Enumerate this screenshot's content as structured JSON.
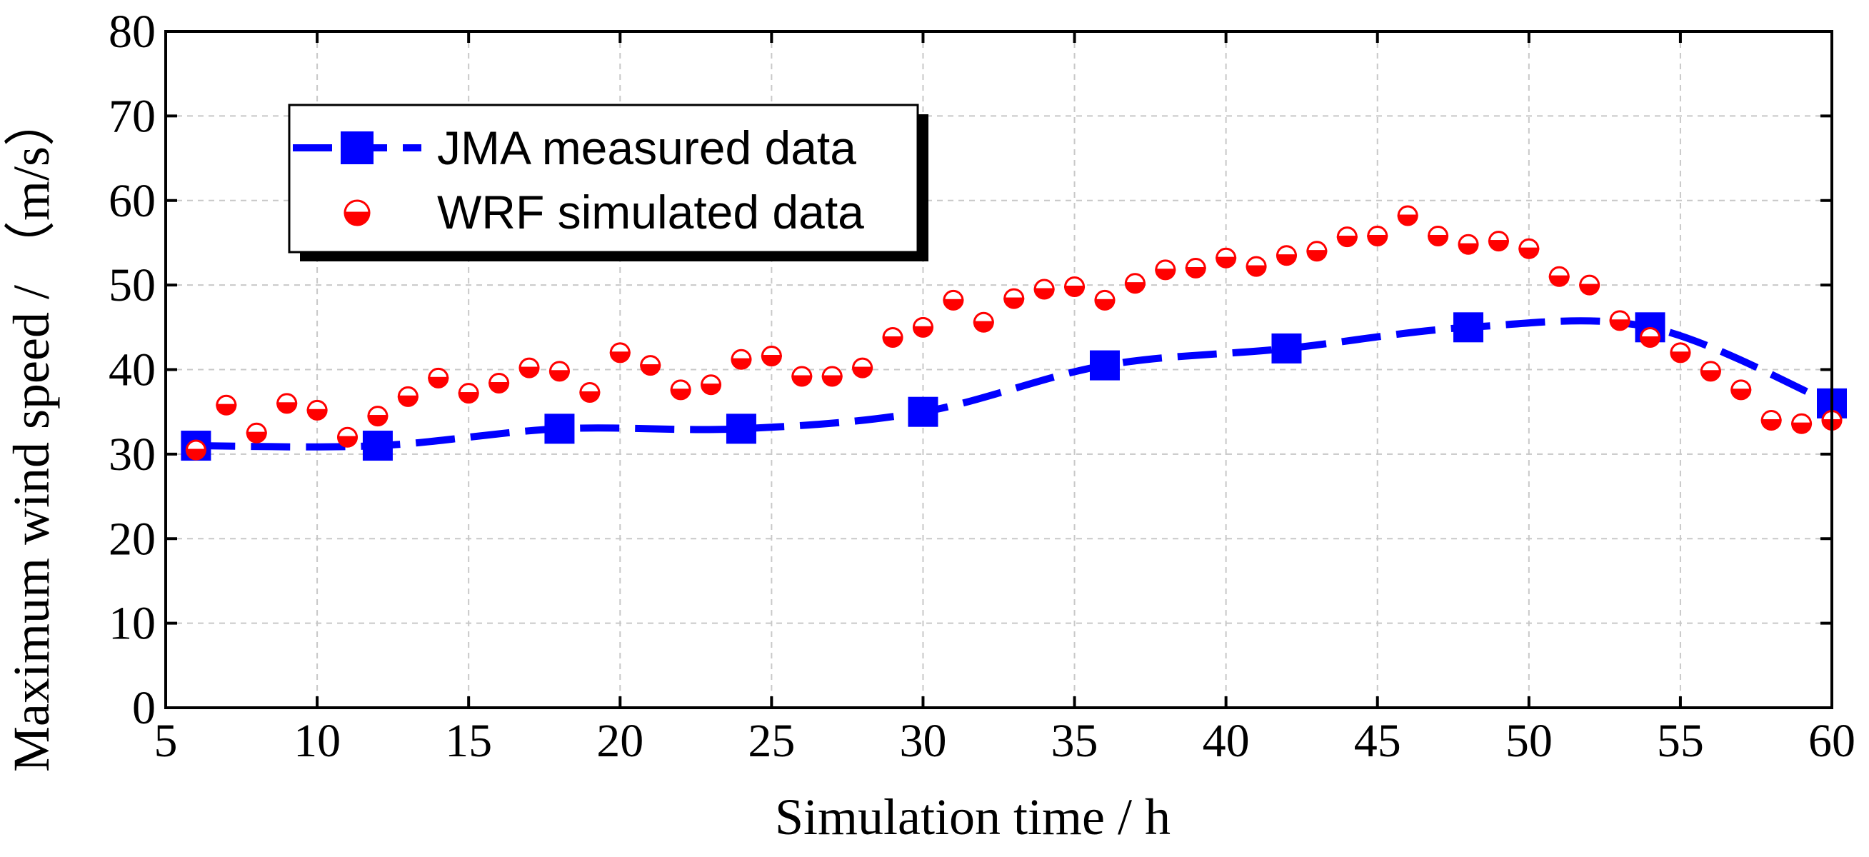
{
  "chart_data": {
    "type": "line",
    "xlabel": "Simulation time / h",
    "ylabel": "Maximum wind speed / （m/s）",
    "xlim": [
      5,
      60
    ],
    "ylim": [
      0,
      80
    ],
    "xticks": [
      5,
      10,
      15,
      20,
      25,
      30,
      35,
      40,
      45,
      50,
      55,
      60
    ],
    "yticks": [
      0,
      10,
      20,
      30,
      40,
      50,
      60,
      70,
      80
    ],
    "grid": true,
    "legend_position": "top-left",
    "series": [
      {
        "name": "JMA measured data",
        "style": "dashed-line-square-markers",
        "color": "#0000ff",
        "x": [
          6,
          12,
          18,
          24,
          30,
          36,
          42,
          48,
          54,
          60
        ],
        "y": [
          31,
          31,
          33,
          33,
          35,
          40.5,
          42.5,
          45,
          45,
          36
        ]
      },
      {
        "name": "WRF simulated data",
        "style": "half-filled-circle-markers",
        "color": "#ff0000",
        "x": [
          6,
          7,
          8,
          9,
          10,
          11,
          12,
          13,
          14,
          15,
          16,
          17,
          18,
          19,
          20,
          21,
          22,
          23,
          24,
          25,
          26,
          27,
          28,
          29,
          30,
          31,
          32,
          33,
          34,
          35,
          36,
          37,
          38,
          39,
          40,
          41,
          42,
          43,
          44,
          45,
          46,
          47,
          48,
          49,
          50,
          51,
          52,
          53,
          54,
          55,
          56,
          57,
          58,
          59,
          60
        ],
        "y": [
          30.5,
          35.8,
          32.5,
          36,
          35.2,
          32,
          34.5,
          36.8,
          39,
          37.2,
          38.4,
          40.2,
          39.8,
          37.3,
          42,
          40.5,
          37.6,
          38.2,
          41.2,
          41.6,
          39.2,
          39.2,
          40.2,
          43.8,
          45,
          48.2,
          45.6,
          48.4,
          49.5,
          49.8,
          48.2,
          50.2,
          51.8,
          52,
          53.2,
          52.2,
          53.5,
          54,
          55.7,
          55.8,
          58.2,
          55.8,
          54.8,
          55.2,
          54.3,
          51,
          50,
          45.8,
          43.8,
          42,
          39.8,
          37.6,
          34,
          33.6,
          34
        ]
      }
    ]
  }
}
